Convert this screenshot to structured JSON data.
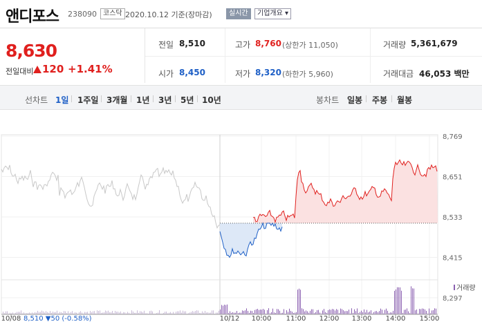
{
  "header": {
    "name": "앤디포스",
    "code": "238090",
    "market": "코스닥",
    "date": "2020.10.12 기준(장마감)",
    "realtime_label": "실시간",
    "corp_label": "기업개요"
  },
  "price": {
    "current": "8,630",
    "change_label": "전일대비",
    "change": "120",
    "change_pct": "+1.41%"
  },
  "info": {
    "prev_label": "전일",
    "prev": "8,510",
    "high_label": "고가",
    "high": "8,760",
    "upper_limit": "(상한가 11,050)",
    "volume_label": "거래량",
    "volume": "5,361,679",
    "open_label": "시가",
    "open": "8,450",
    "low_label": "저가",
    "low": "8,320",
    "lower_limit": "(하한가 5,960)",
    "amount_label": "거래대금",
    "amount": "46,053 백만"
  },
  "tabs": {
    "line_label": "선차트",
    "line_items": [
      "1일",
      "1주일",
      "3개월",
      "1년",
      "3년",
      "5년",
      "10년"
    ],
    "active": "1일",
    "candle_label": "봉차트",
    "candle_items": [
      "일봉",
      "주봉",
      "월봉"
    ]
  },
  "chart_data": {
    "type": "line",
    "y_ticks": [
      "8,769",
      "8,651",
      "8,533",
      "8,415",
      "8,297"
    ],
    "prev_close": 8510,
    "ylim": [
      8297,
      8769
    ],
    "x_labels": [
      "10/08",
      "10/12",
      "10:00",
      "11:00",
      "12:00",
      "13:00",
      "14:00",
      "15:00"
    ],
    "prev_day_summary": "8,510 ▼50 (-0.58%)",
    "volume_label": "거래량",
    "colors": {
      "up": "#e0201e",
      "down": "#1e5fc6",
      "prev": "#c8c8c8"
    }
  }
}
